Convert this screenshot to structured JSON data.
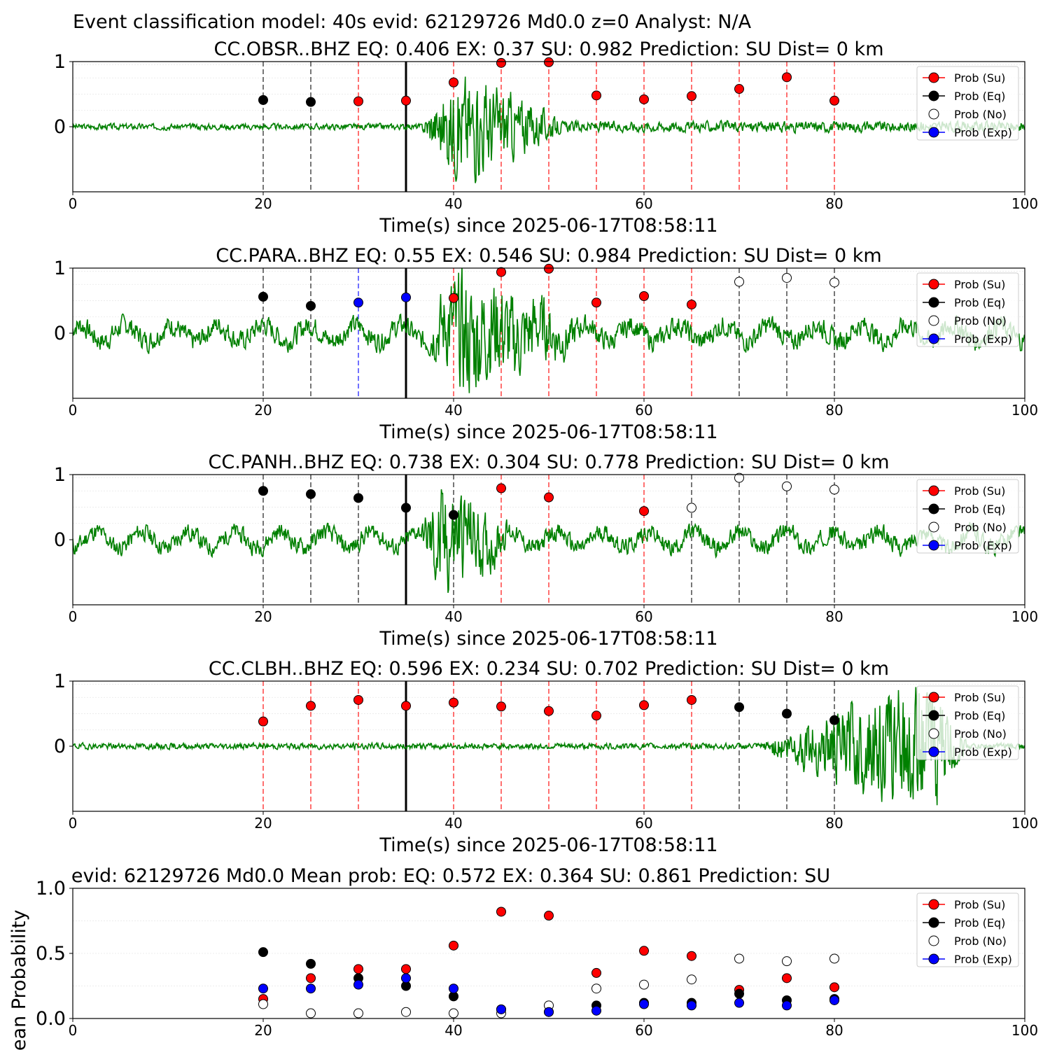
{
  "suptitle": "Event classification model: 40s evid: 62129726 Md0.0 z=0 Analyst: N/A",
  "legend": [
    "Prob (Su)",
    "Prob (Eq)",
    "Prob (No)",
    "Prob (Exp)"
  ],
  "colors": {
    "su": "#ff0000",
    "eq": "#000000",
    "no": "#ffffff",
    "exp": "#0000ff",
    "waveform": "#008000",
    "origin": "#000000"
  },
  "chart_data": [
    {
      "type": "scatter",
      "title": "CC.OBSR..BHZ   EQ: 0.406  EX: 0.37  SU: 0.982   Prediction: SU    Dist= 0 km",
      "xlabel": "Time(s) since 2025-06-17T08:58:11",
      "ylabel": "",
      "xlim": [
        0,
        100
      ],
      "ylim": [
        -1,
        1
      ],
      "xticks": [
        "0",
        "20",
        "40",
        "60",
        "80",
        "100"
      ],
      "yticks": [
        "0",
        "1"
      ],
      "origin_time": 35,
      "waveform": {
        "amp": 0.04,
        "burst_start": 36.5,
        "burst_peak": 41,
        "burst_end": 52,
        "burst_amp": 0.75,
        "late_amp": 0.07,
        "seed": 3
      },
      "points": [
        {
          "x": 20,
          "y": 0.41,
          "class": "eq"
        },
        {
          "x": 25,
          "y": 0.38,
          "class": "eq"
        },
        {
          "x": 30,
          "y": 0.39,
          "class": "su"
        },
        {
          "x": 35,
          "y": 0.4,
          "class": "su"
        },
        {
          "x": 40,
          "y": 0.68,
          "class": "su"
        },
        {
          "x": 45,
          "y": 0.98,
          "class": "su"
        },
        {
          "x": 50,
          "y": 0.99,
          "class": "su"
        },
        {
          "x": 55,
          "y": 0.48,
          "class": "su"
        },
        {
          "x": 60,
          "y": 0.42,
          "class": "su"
        },
        {
          "x": 65,
          "y": 0.47,
          "class": "su"
        },
        {
          "x": 70,
          "y": 0.58,
          "class": "su"
        },
        {
          "x": 75,
          "y": 0.76,
          "class": "su"
        },
        {
          "x": 80,
          "y": 0.4,
          "class": "su"
        }
      ]
    },
    {
      "type": "scatter",
      "title": "CC.PARA..BHZ   EQ: 0.55  EX: 0.546  SU: 0.984   Prediction: SU    Dist= 0 km",
      "xlabel": "Time(s) since 2025-06-17T08:58:11",
      "ylabel": "",
      "xlim": [
        0,
        100
      ],
      "ylim": [
        -1,
        1
      ],
      "xticks": [
        "0",
        "20",
        "40",
        "60",
        "80",
        "100"
      ],
      "yticks": [
        "0",
        "1"
      ],
      "origin_time": 35,
      "waveform": {
        "amp": 0.14,
        "burst_start": 36.5,
        "burst_peak": 41,
        "burst_end": 55,
        "burst_amp": 0.85,
        "late_amp": 0.14,
        "seed": 7
      },
      "points": [
        {
          "x": 20,
          "y": 0.56,
          "class": "eq"
        },
        {
          "x": 25,
          "y": 0.42,
          "class": "eq"
        },
        {
          "x": 30,
          "y": 0.47,
          "class": "exp"
        },
        {
          "x": 35,
          "y": 0.55,
          "class": "exp"
        },
        {
          "x": 40,
          "y": 0.54,
          "class": "su"
        },
        {
          "x": 45,
          "y": 0.94,
          "class": "su"
        },
        {
          "x": 50,
          "y": 0.99,
          "class": "su"
        },
        {
          "x": 55,
          "y": 0.47,
          "class": "su"
        },
        {
          "x": 60,
          "y": 0.57,
          "class": "su"
        },
        {
          "x": 65,
          "y": 0.44,
          "class": "su"
        },
        {
          "x": 70,
          "y": 0.79,
          "class": "no"
        },
        {
          "x": 75,
          "y": 0.85,
          "class": "no"
        },
        {
          "x": 80,
          "y": 0.78,
          "class": "no"
        }
      ]
    },
    {
      "type": "scatter",
      "title": "CC.PANH..BHZ   EQ: 0.738  EX: 0.304  SU: 0.778   Prediction: SU    Dist= 0 km",
      "xlabel": "Time(s) since 2025-06-17T08:58:11",
      "ylabel": "",
      "xlim": [
        0,
        100
      ],
      "ylim": [
        -1,
        1
      ],
      "xticks": [
        "0",
        "20",
        "40",
        "60",
        "80",
        "100"
      ],
      "yticks": [
        "0",
        "1"
      ],
      "origin_time": 35,
      "waveform": {
        "amp": 0.12,
        "burst_start": 36.5,
        "burst_peak": 38.5,
        "burst_end": 47,
        "burst_amp": 0.8,
        "late_amp": 0.12,
        "seed": 11
      },
      "points": [
        {
          "x": 20,
          "y": 0.75,
          "class": "eq"
        },
        {
          "x": 25,
          "y": 0.7,
          "class": "eq"
        },
        {
          "x": 30,
          "y": 0.64,
          "class": "eq"
        },
        {
          "x": 35,
          "y": 0.49,
          "class": "eq"
        },
        {
          "x": 40,
          "y": 0.38,
          "class": "eq"
        },
        {
          "x": 45,
          "y": 0.79,
          "class": "su"
        },
        {
          "x": 50,
          "y": 0.65,
          "class": "su"
        },
        {
          "x": 60,
          "y": 0.44,
          "class": "su"
        },
        {
          "x": 65,
          "y": 0.49,
          "class": "no"
        },
        {
          "x": 70,
          "y": 0.95,
          "class": "no"
        },
        {
          "x": 75,
          "y": 0.82,
          "class": "no"
        },
        {
          "x": 80,
          "y": 0.77,
          "class": "no"
        }
      ]
    },
    {
      "type": "scatter",
      "title": "CC.CLBH..BHZ   EQ: 0.596  EX: 0.234  SU: 0.702   Prediction: SU    Dist= 0 km",
      "xlabel": "Time(s) since 2025-06-17T08:58:11",
      "ylabel": "",
      "xlim": [
        0,
        100
      ],
      "ylim": [
        -1,
        1
      ],
      "xticks": [
        "0",
        "20",
        "40",
        "60",
        "80",
        "100"
      ],
      "yticks": [
        "0",
        "1"
      ],
      "origin_time": 35,
      "waveform": {
        "amp": 0.04,
        "burst_start": 72,
        "burst_peak": 90,
        "burst_end": 94,
        "burst_amp": 0.9,
        "late_amp": 0.04,
        "seed": 19
      },
      "points": [
        {
          "x": 20,
          "y": 0.38,
          "class": "su"
        },
        {
          "x": 25,
          "y": 0.62,
          "class": "su"
        },
        {
          "x": 30,
          "y": 0.71,
          "class": "su"
        },
        {
          "x": 35,
          "y": 0.62,
          "class": "su"
        },
        {
          "x": 40,
          "y": 0.67,
          "class": "su"
        },
        {
          "x": 45,
          "y": 0.61,
          "class": "su"
        },
        {
          "x": 50,
          "y": 0.54,
          "class": "su"
        },
        {
          "x": 55,
          "y": 0.47,
          "class": "su"
        },
        {
          "x": 60,
          "y": 0.63,
          "class": "su"
        },
        {
          "x": 65,
          "y": 0.71,
          "class": "su"
        },
        {
          "x": 70,
          "y": 0.6,
          "class": "eq"
        },
        {
          "x": 75,
          "y": 0.5,
          "class": "eq"
        },
        {
          "x": 80,
          "y": 0.4,
          "class": "eq"
        }
      ]
    },
    {
      "type": "scatter",
      "title": "evid: 62129726  Md0.0   Mean prob:   EQ: 0.572  EX: 0.364  SU: 0.861   Prediction: SU",
      "xlabel": "",
      "ylabel": "Mean Probability",
      "xlim": [
        0,
        100
      ],
      "ylim": [
        0,
        1
      ],
      "xticks": [
        "0",
        "20",
        "40",
        "60",
        "80",
        "100"
      ],
      "yticks": [
        "0.0",
        "0.5",
        "1.0"
      ],
      "series": [
        {
          "name": "Prob (Su)",
          "class": "su",
          "x": [
            20,
            25,
            30,
            35,
            40,
            45,
            50,
            55,
            60,
            65,
            70,
            75,
            80
          ],
          "y": [
            0.15,
            0.31,
            0.38,
            0.38,
            0.56,
            0.82,
            0.79,
            0.35,
            0.52,
            0.48,
            0.22,
            0.31,
            0.24
          ]
        },
        {
          "name": "Prob (Eq)",
          "class": "eq",
          "x": [
            20,
            25,
            30,
            35,
            40,
            45,
            50,
            55,
            60,
            65,
            70,
            75,
            80
          ],
          "y": [
            0.51,
            0.42,
            0.31,
            0.25,
            0.17,
            0.07,
            0.05,
            0.1,
            0.12,
            0.12,
            0.19,
            0.14,
            0.15
          ]
        },
        {
          "name": "Prob (No)",
          "class": "no",
          "x": [
            20,
            25,
            30,
            35,
            40,
            45,
            50,
            55,
            60,
            65,
            70,
            75,
            80
          ],
          "y": [
            0.11,
            0.04,
            0.04,
            0.05,
            0.04,
            0.04,
            0.1,
            0.23,
            0.26,
            0.3,
            0.46,
            0.44,
            0.46
          ]
        },
        {
          "name": "Prob (Exp)",
          "class": "exp",
          "x": [
            20,
            25,
            30,
            35,
            40,
            45,
            50,
            55,
            60,
            65,
            70,
            75,
            80
          ],
          "y": [
            0.23,
            0.23,
            0.26,
            0.31,
            0.23,
            0.07,
            0.05,
            0.06,
            0.11,
            0.1,
            0.12,
            0.1,
            0.14
          ]
        }
      ]
    }
  ]
}
